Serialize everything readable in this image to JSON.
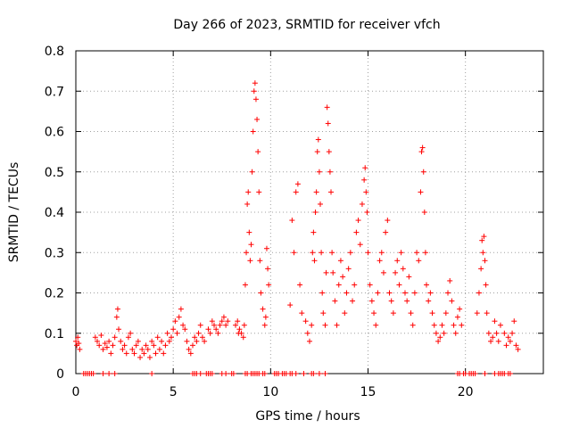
{
  "chart_data": {
    "type": "scatter",
    "title": "Day 266 of 2023, SRMTID for receiver vfch",
    "xlabel": "GPS time / hours",
    "ylabel": "SRMTID / TECUs",
    "xlim": [
      0,
      24
    ],
    "ylim": [
      0,
      0.8
    ],
    "x_ticks": [
      0,
      5,
      10,
      15,
      20
    ],
    "x_tick_labels": [
      "0",
      "5",
      "10",
      "15",
      "20"
    ],
    "y_ticks": [
      0,
      0.1,
      0.2,
      0.3,
      0.4,
      0.5,
      0.6,
      0.7,
      0.8
    ],
    "y_tick_labels": [
      "0",
      "0.1",
      "0.2",
      "0.3",
      "0.4",
      "0.5",
      "0.6",
      "0.7",
      "0.8"
    ],
    "grid": true,
    "marker": "plus",
    "color": "#ff0000",
    "series": [
      {
        "name": "SRMTID",
        "points": [
          [
            0.0,
            0.08
          ],
          [
            0.05,
            0.07
          ],
          [
            0.1,
            0.09
          ],
          [
            0.15,
            0.075
          ],
          [
            0.2,
            0.06
          ],
          [
            1.0,
            0.09
          ],
          [
            1.1,
            0.08
          ],
          [
            1.2,
            0.07
          ],
          [
            1.3,
            0.095
          ],
          [
            1.4,
            0.06
          ],
          [
            1.5,
            0.075
          ],
          [
            1.6,
            0.065
          ],
          [
            1.7,
            0.08
          ],
          [
            1.8,
            0.05
          ],
          [
            1.9,
            0.07
          ],
          [
            2.0,
            0.09
          ],
          [
            2.1,
            0.14
          ],
          [
            2.15,
            0.16
          ],
          [
            2.2,
            0.11
          ],
          [
            2.3,
            0.08
          ],
          [
            2.4,
            0.06
          ],
          [
            2.5,
            0.07
          ],
          [
            2.6,
            0.05
          ],
          [
            2.7,
            0.09
          ],
          [
            2.8,
            0.1
          ],
          [
            2.9,
            0.06
          ],
          [
            3.0,
            0.05
          ],
          [
            3.1,
            0.07
          ],
          [
            3.2,
            0.08
          ],
          [
            3.3,
            0.04
          ],
          [
            3.4,
            0.06
          ],
          [
            3.5,
            0.05
          ],
          [
            3.6,
            0.07
          ],
          [
            3.7,
            0.06
          ],
          [
            3.8,
            0.04
          ],
          [
            3.9,
            0.08
          ],
          [
            4.0,
            0.07
          ],
          [
            4.1,
            0.05
          ],
          [
            4.2,
            0.09
          ],
          [
            4.3,
            0.06
          ],
          [
            4.4,
            0.08
          ],
          [
            4.5,
            0.05
          ],
          [
            4.6,
            0.07
          ],
          [
            4.7,
            0.1
          ],
          [
            4.8,
            0.08
          ],
          [
            4.9,
            0.09
          ],
          [
            5.0,
            0.11
          ],
          [
            5.1,
            0.13
          ],
          [
            5.2,
            0.1
          ],
          [
            5.3,
            0.14
          ],
          [
            5.4,
            0.16
          ],
          [
            5.5,
            0.12
          ],
          [
            5.6,
            0.11
          ],
          [
            5.7,
            0.08
          ],
          [
            5.8,
            0.06
          ],
          [
            5.9,
            0.05
          ],
          [
            6.0,
            0.07
          ],
          [
            6.1,
            0.09
          ],
          [
            6.2,
            0.08
          ],
          [
            6.3,
            0.1
          ],
          [
            6.4,
            0.12
          ],
          [
            6.5,
            0.09
          ],
          [
            6.6,
            0.08
          ],
          [
            6.8,
            0.11
          ],
          [
            6.9,
            0.1
          ],
          [
            7.0,
            0.13
          ],
          [
            7.1,
            0.12
          ],
          [
            7.2,
            0.11
          ],
          [
            7.3,
            0.1
          ],
          [
            7.4,
            0.12
          ],
          [
            7.5,
            0.13
          ],
          [
            7.6,
            0.14
          ],
          [
            7.7,
            0.12
          ],
          [
            7.8,
            0.13
          ],
          [
            8.2,
            0.12
          ],
          [
            8.3,
            0.13
          ],
          [
            8.35,
            0.1
          ],
          [
            8.4,
            0.11
          ],
          [
            8.5,
            0.1
          ],
          [
            8.6,
            0.09
          ],
          [
            8.65,
            0.12
          ],
          [
            8.7,
            0.22
          ],
          [
            8.75,
            0.3
          ],
          [
            8.8,
            0.42
          ],
          [
            8.85,
            0.45
          ],
          [
            8.9,
            0.35
          ],
          [
            8.95,
            0.28
          ],
          [
            9.0,
            0.32
          ],
          [
            9.05,
            0.5
          ],
          [
            9.1,
            0.6
          ],
          [
            9.15,
            0.7
          ],
          [
            9.2,
            0.72
          ],
          [
            9.25,
            0.68
          ],
          [
            9.3,
            0.63
          ],
          [
            9.35,
            0.55
          ],
          [
            9.4,
            0.45
          ],
          [
            9.45,
            0.28
          ],
          [
            9.5,
            0.2
          ],
          [
            9.6,
            0.16
          ],
          [
            9.7,
            0.12
          ],
          [
            9.75,
            0.14
          ],
          [
            9.8,
            0.31
          ],
          [
            9.85,
            0.26
          ],
          [
            9.9,
            0.22
          ],
          [
            11.0,
            0.17
          ],
          [
            11.1,
            0.38
          ],
          [
            11.2,
            0.3
          ],
          [
            11.3,
            0.45
          ],
          [
            11.4,
            0.47
          ],
          [
            11.5,
            0.22
          ],
          [
            11.6,
            0.15
          ],
          [
            11.8,
            0.13
          ],
          [
            11.9,
            0.1
          ],
          [
            12.0,
            0.08
          ],
          [
            12.1,
            0.12
          ],
          [
            12.15,
            0.3
          ],
          [
            12.2,
            0.35
          ],
          [
            12.25,
            0.28
          ],
          [
            12.3,
            0.4
          ],
          [
            12.35,
            0.45
          ],
          [
            12.4,
            0.55
          ],
          [
            12.45,
            0.58
          ],
          [
            12.5,
            0.5
          ],
          [
            12.55,
            0.42
          ],
          [
            12.6,
            0.3
          ],
          [
            12.65,
            0.2
          ],
          [
            12.7,
            0.15
          ],
          [
            12.8,
            0.12
          ],
          [
            12.85,
            0.25
          ],
          [
            12.9,
            0.66
          ],
          [
            12.95,
            0.62
          ],
          [
            13.0,
            0.55
          ],
          [
            13.05,
            0.5
          ],
          [
            13.1,
            0.45
          ],
          [
            13.15,
            0.3
          ],
          [
            13.2,
            0.25
          ],
          [
            13.3,
            0.18
          ],
          [
            13.4,
            0.12
          ],
          [
            13.5,
            0.22
          ],
          [
            13.6,
            0.28
          ],
          [
            13.7,
            0.24
          ],
          [
            13.8,
            0.15
          ],
          [
            13.9,
            0.2
          ],
          [
            14.0,
            0.26
          ],
          [
            14.1,
            0.3
          ],
          [
            14.2,
            0.18
          ],
          [
            14.3,
            0.22
          ],
          [
            14.4,
            0.35
          ],
          [
            14.5,
            0.38
          ],
          [
            14.6,
            0.32
          ],
          [
            14.7,
            0.42
          ],
          [
            14.8,
            0.48
          ],
          [
            14.85,
            0.51
          ],
          [
            14.9,
            0.45
          ],
          [
            14.95,
            0.4
          ],
          [
            15.0,
            0.3
          ],
          [
            15.1,
            0.22
          ],
          [
            15.2,
            0.18
          ],
          [
            15.3,
            0.15
          ],
          [
            15.4,
            0.12
          ],
          [
            15.5,
            0.2
          ],
          [
            15.6,
            0.28
          ],
          [
            15.7,
            0.3
          ],
          [
            15.8,
            0.25
          ],
          [
            15.9,
            0.35
          ],
          [
            16.0,
            0.38
          ],
          [
            16.1,
            0.2
          ],
          [
            16.2,
            0.18
          ],
          [
            16.3,
            0.15
          ],
          [
            16.4,
            0.25
          ],
          [
            16.5,
            0.28
          ],
          [
            16.6,
            0.22
          ],
          [
            16.7,
            0.3
          ],
          [
            16.8,
            0.26
          ],
          [
            16.9,
            0.2
          ],
          [
            17.0,
            0.18
          ],
          [
            17.1,
            0.24
          ],
          [
            17.2,
            0.15
          ],
          [
            17.3,
            0.12
          ],
          [
            17.4,
            0.2
          ],
          [
            17.5,
            0.3
          ],
          [
            17.6,
            0.28
          ],
          [
            17.7,
            0.45
          ],
          [
            17.75,
            0.55
          ],
          [
            17.8,
            0.56
          ],
          [
            17.85,
            0.5
          ],
          [
            17.9,
            0.4
          ],
          [
            17.95,
            0.3
          ],
          [
            18.0,
            0.22
          ],
          [
            18.1,
            0.18
          ],
          [
            18.2,
            0.2
          ],
          [
            18.3,
            0.15
          ],
          [
            18.4,
            0.12
          ],
          [
            18.5,
            0.1
          ],
          [
            18.6,
            0.08
          ],
          [
            18.7,
            0.09
          ],
          [
            18.8,
            0.12
          ],
          [
            18.9,
            0.1
          ],
          [
            19.0,
            0.15
          ],
          [
            19.1,
            0.2
          ],
          [
            19.2,
            0.23
          ],
          [
            19.3,
            0.18
          ],
          [
            19.4,
            0.12
          ],
          [
            19.5,
            0.1
          ],
          [
            19.6,
            0.14
          ],
          [
            19.7,
            0.16
          ],
          [
            19.8,
            0.12
          ],
          [
            20.6,
            0.15
          ],
          [
            20.7,
            0.2
          ],
          [
            20.8,
            0.26
          ],
          [
            20.85,
            0.33
          ],
          [
            20.9,
            0.3
          ],
          [
            20.95,
            0.34
          ],
          [
            21.0,
            0.28
          ],
          [
            21.05,
            0.22
          ],
          [
            21.1,
            0.15
          ],
          [
            21.2,
            0.1
          ],
          [
            21.3,
            0.08
          ],
          [
            21.4,
            0.09
          ],
          [
            21.5,
            0.13
          ],
          [
            21.6,
            0.1
          ],
          [
            21.7,
            0.08
          ],
          [
            21.8,
            0.12
          ],
          [
            22.0,
            0.1
          ],
          [
            22.1,
            0.07
          ],
          [
            22.2,
            0.09
          ],
          [
            22.3,
            0.08
          ],
          [
            22.4,
            0.1
          ],
          [
            22.5,
            0.13
          ],
          [
            22.6,
            0.07
          ],
          [
            22.7,
            0.06
          ],
          [
            0.4,
            0.0
          ],
          [
            0.5,
            0.0
          ],
          [
            0.6,
            0.0
          ],
          [
            0.7,
            0.0
          ],
          [
            0.8,
            0.0
          ],
          [
            0.9,
            0.0
          ],
          [
            1.4,
            0.0
          ],
          [
            1.7,
            0.0
          ],
          [
            2.0,
            0.0
          ],
          [
            3.9,
            0.0
          ],
          [
            6.0,
            0.0
          ],
          [
            6.1,
            0.0
          ],
          [
            6.2,
            0.0
          ],
          [
            6.4,
            0.0
          ],
          [
            6.7,
            0.0
          ],
          [
            6.8,
            0.0
          ],
          [
            6.9,
            0.0
          ],
          [
            7.0,
            0.0
          ],
          [
            7.5,
            0.0
          ],
          [
            7.7,
            0.0
          ],
          [
            8.0,
            0.0
          ],
          [
            8.1,
            0.0
          ],
          [
            8.7,
            0.0
          ],
          [
            8.8,
            0.0
          ],
          [
            9.0,
            0.0
          ],
          [
            9.1,
            0.0
          ],
          [
            9.2,
            0.0
          ],
          [
            9.3,
            0.0
          ],
          [
            9.4,
            0.0
          ],
          [
            9.6,
            0.0
          ],
          [
            9.7,
            0.0
          ],
          [
            10.2,
            0.0
          ],
          [
            10.3,
            0.0
          ],
          [
            10.4,
            0.0
          ],
          [
            10.6,
            0.0
          ],
          [
            10.7,
            0.0
          ],
          [
            10.8,
            0.0
          ],
          [
            11.0,
            0.0
          ],
          [
            11.1,
            0.0
          ],
          [
            11.3,
            0.0
          ],
          [
            11.7,
            0.0
          ],
          [
            12.1,
            0.0
          ],
          [
            12.2,
            0.0
          ],
          [
            12.5,
            0.0
          ],
          [
            12.8,
            0.0
          ],
          [
            19.6,
            0.0
          ],
          [
            19.7,
            0.0
          ],
          [
            19.9,
            0.0
          ],
          [
            20.0,
            0.0
          ],
          [
            20.2,
            0.0
          ],
          [
            20.3,
            0.0
          ],
          [
            20.4,
            0.0
          ],
          [
            20.5,
            0.0
          ],
          [
            21.0,
            0.0
          ],
          [
            21.5,
            0.0
          ],
          [
            21.7,
            0.0
          ],
          [
            21.8,
            0.0
          ],
          [
            21.9,
            0.0
          ],
          [
            22.0,
            0.0
          ],
          [
            22.2,
            0.0
          ],
          [
            22.3,
            0.0
          ]
        ]
      }
    ]
  }
}
